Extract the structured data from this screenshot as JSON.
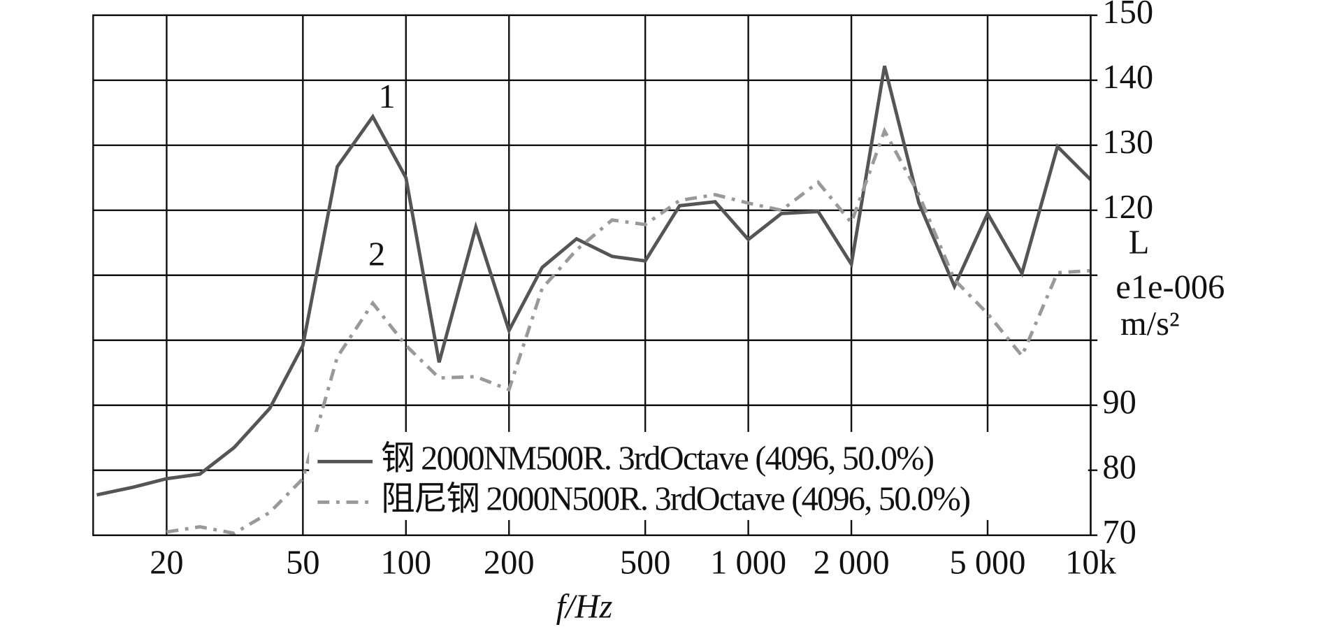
{
  "chart_data": {
    "type": "line",
    "x": [
      12.5,
      16,
      20,
      25,
      31.5,
      40,
      50,
      63,
      80,
      100,
      125,
      160,
      200,
      250,
      315,
      400,
      500,
      630,
      800,
      1000,
      1250,
      1600,
      2000,
      2500,
      3150,
      4000,
      5000,
      6300,
      8000,
      10000
    ],
    "series": [
      {
        "name": "钢 2000NM500R. 3rdOctave (4096, 50.0%)",
        "color": "#555555",
        "dash": "solid",
        "values": [
          76.2,
          77.4,
          78.7,
          79.4,
          83.5,
          89.5,
          99.2,
          126.7,
          134.4,
          125,
          96.6,
          117.4,
          101.5,
          111.2,
          115.6,
          112.9,
          112.2,
          120.7,
          121.3,
          115.5,
          119.5,
          119.8,
          111.7,
          142.2,
          121.1,
          108.3,
          119.5,
          110.3,
          129.8,
          124.7
        ]
      },
      {
        "name": "阻尼钢 2000N500R. 3rdOctave (4096, 50.0%)",
        "color": "#999999",
        "dash": "dashdot",
        "values": [
          null,
          null,
          70.5,
          71.3,
          70.3,
          73.5,
          78.7,
          97.4,
          105.7,
          99.2,
          94.2,
          94.4,
          92.4,
          108,
          113.9,
          118.5,
          117.8,
          121.5,
          122.4,
          121.1,
          120,
          124.3,
          118.1,
          132.2,
          122.4,
          109.3,
          104.1,
          97.6,
          110.4,
          110.7
        ]
      }
    ],
    "xlog": true,
    "xlim": [
      12.2,
      10000
    ],
    "xticks": [
      20,
      50,
      100,
      200,
      500,
      {
        "value": 1000,
        "label": "1 000"
      },
      {
        "value": 2000,
        "label": "2 000"
      },
      {
        "value": 5000,
        "label": "5 000"
      },
      {
        "value": 10000,
        "label": "10k"
      }
    ],
    "ylim": [
      70,
      150
    ],
    "yticks": [
      70,
      80,
      90,
      {
        "value": 100,
        "label": null
      },
      {
        "value": 110,
        "label": null
      },
      120,
      130,
      140,
      150
    ],
    "xlabel": "f/Hz",
    "ylabel": [
      "L",
      "e1e-006",
      "m/s²"
    ],
    "annotations": [
      "1",
      "2"
    ],
    "grid": true
  }
}
